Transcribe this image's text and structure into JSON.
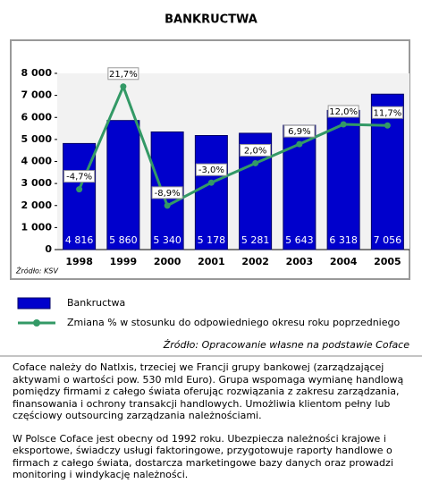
{
  "chart_data": {
    "type": "bar-line",
    "title": "BANKRUCTWA",
    "categories": [
      "1998",
      "1999",
      "2000",
      "2001",
      "2002",
      "2003",
      "2004",
      "2005"
    ],
    "series": [
      {
        "name": "Bankructwa",
        "type": "bar",
        "color": "#0000cc",
        "values": [
          4816,
          5860,
          5340,
          5178,
          5281,
          5643,
          6318,
          7056
        ],
        "value_labels": [
          "4 816",
          "5 860",
          "5 340",
          "5 178",
          "5 281",
          "5 643",
          "6 318",
          "7 056"
        ]
      },
      {
        "name": "Zmiana % w stosunku do odpowiedniego okresu roku poprzedniego",
        "type": "line",
        "axis": "y2",
        "color": "#339966",
        "values": [
          -4.7,
          21.7,
          -8.9,
          -3.0,
          2.0,
          6.9,
          12.0,
          11.7
        ],
        "value_labels": [
          "-4,7%",
          "21,7%",
          "-8,9%",
          "-3,0%",
          "2,0%",
          "6,9%",
          "12,0%",
          "11,7%"
        ]
      }
    ],
    "ylim": [
      0,
      8000
    ],
    "yticks": [
      0,
      {
        "value": 1000,
        "label": "1 000"
      },
      {
        "value": 2000,
        "label": "2 000"
      },
      {
        "value": 3000,
        "label": "3 000"
      },
      {
        "value": 4000,
        "label": "4 000"
      },
      {
        "value": 5000,
        "label": "5 000"
      },
      {
        "value": 6000,
        "label": "6 000"
      },
      {
        "value": 7000,
        "label": "7 000"
      },
      {
        "value": 8000,
        "label": "8 000"
      }
    ],
    "y2lim": [
      -20.2,
      25.1
    ],
    "note": "Źródło: KSV",
    "source": "Źródło: Opracowanie własne na podstawie Coface"
  },
  "text": {
    "paragraphs": [
      "Coface należy do NatIxis, trzeciej we Francji grupy bankowej (zarządzającej aktywami o wartości pow. 530 mld Euro). Grupa wspomaga wymianę handlową pomiędzy firmami z całego świata oferując rozwiązania z zakresu zarządzania, finansowania i ochrony transakcji handlowych. Umożliwia klientom pełny lub częściowy outsourcing zarządzania należnościami.",
      "W Polsce Coface jest obecny od 1992 roku. Ubezpiecza należności krajowe i eksportowe, świadczy usługi faktoringowe, przygotowuje raporty handlowe o firmach z całego świata, dostarcza marketingowe bazy danych oraz prowadzi monitoring i windykację należności."
    ]
  }
}
